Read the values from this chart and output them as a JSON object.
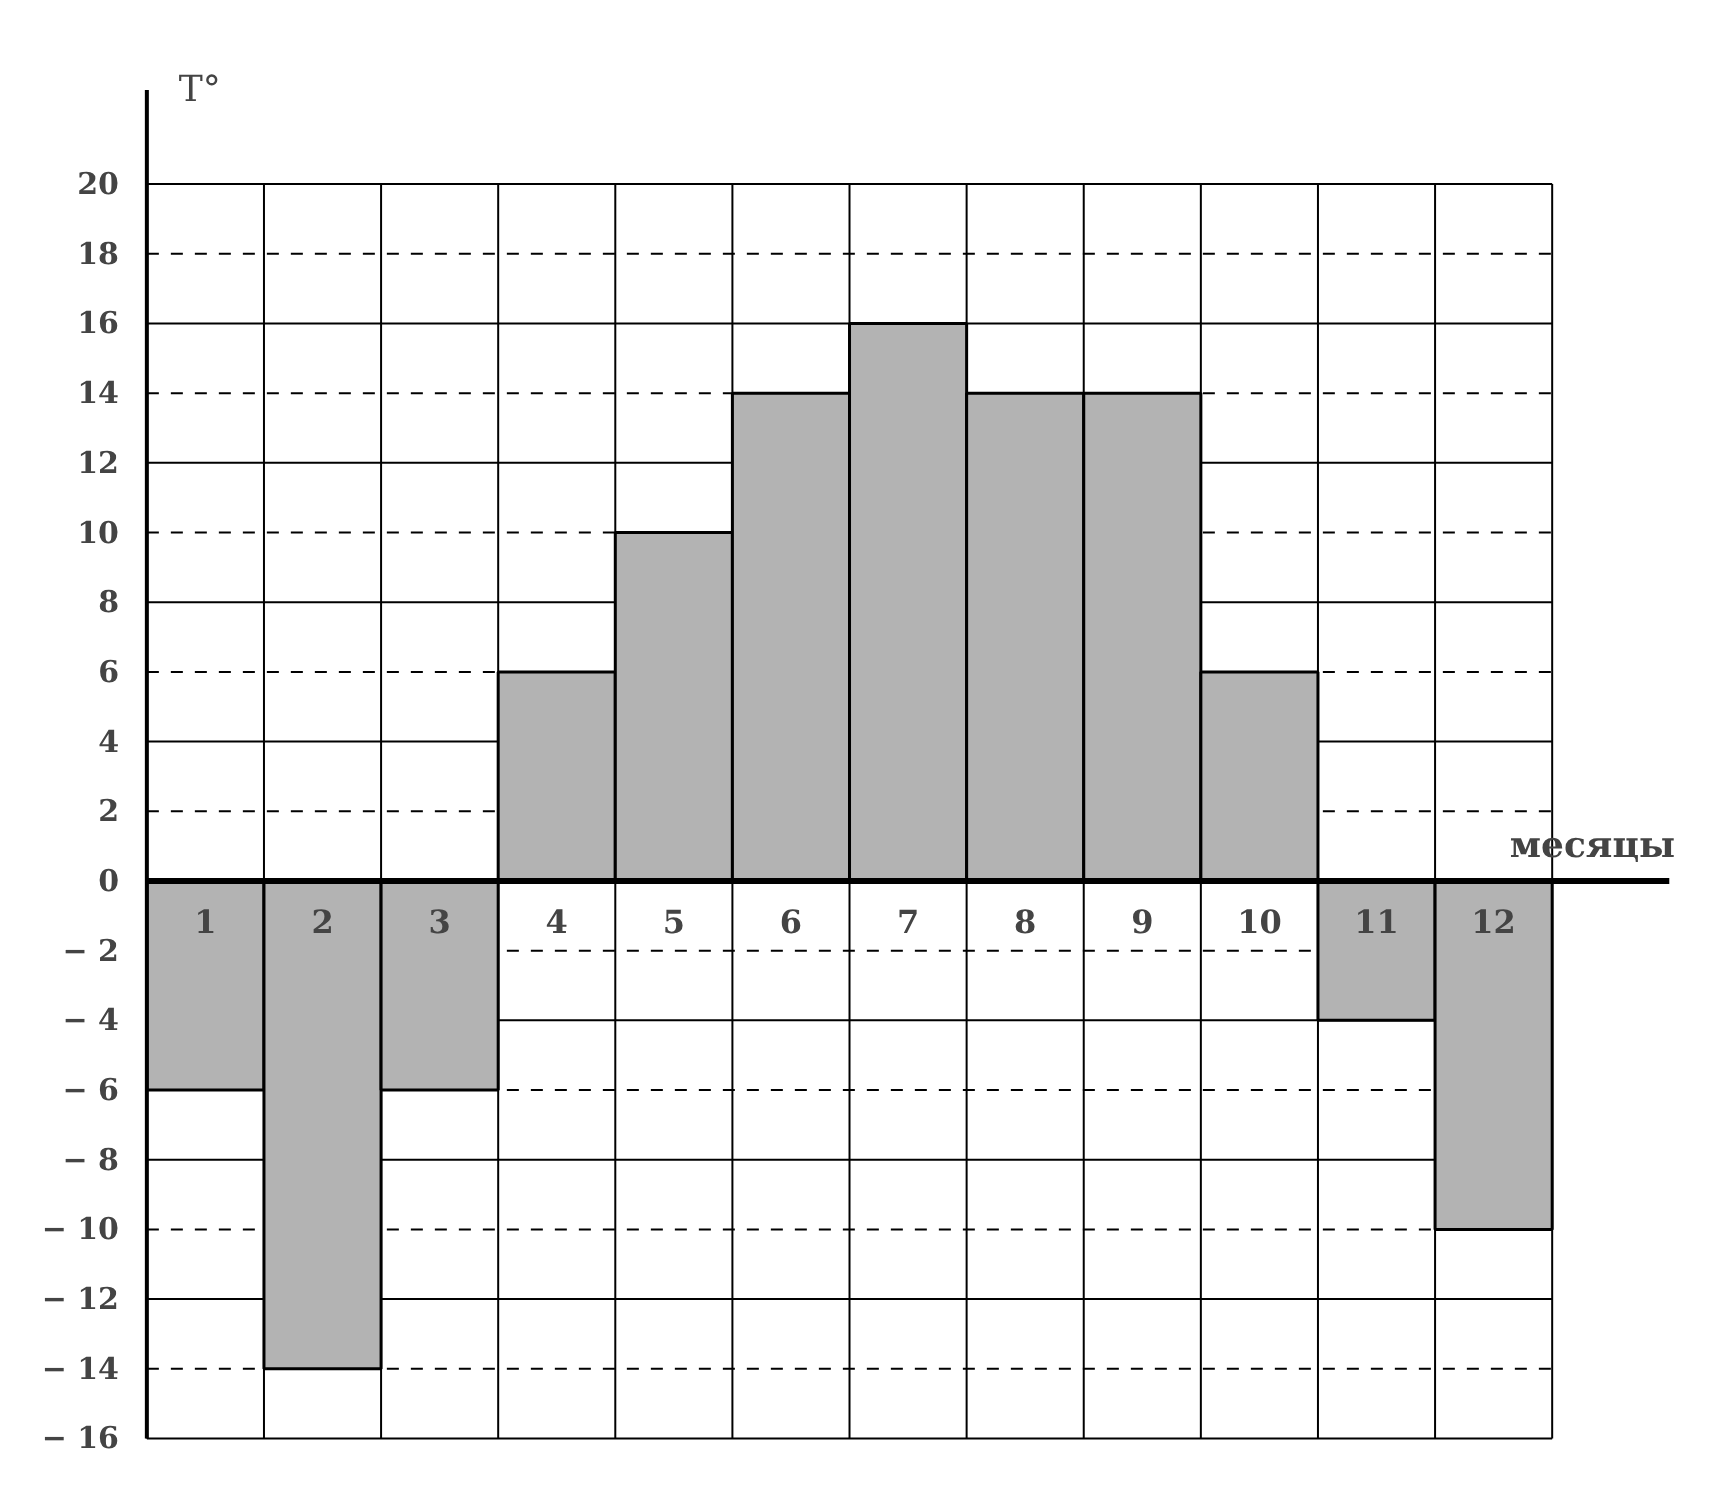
{
  "chart_data": {
    "type": "bar",
    "xlabel": "месяцы",
    "ylabel": "T°",
    "categories": [
      "1",
      "2",
      "3",
      "4",
      "5",
      "6",
      "7",
      "8",
      "9",
      "10",
      "11",
      "12"
    ],
    "values": [
      -6,
      -14,
      -6,
      6,
      10,
      14,
      16,
      14,
      14,
      6,
      -4,
      -10
    ],
    "color": "#b3b3b3",
    "ylim": [
      -16,
      20
    ],
    "yticks": [
      -16,
      -14,
      -12,
      -10,
      -8,
      -6,
      -4,
      -2,
      0,
      2,
      4,
      6,
      8,
      10,
      12,
      14,
      16,
      18,
      20
    ],
    "grid": true
  }
}
